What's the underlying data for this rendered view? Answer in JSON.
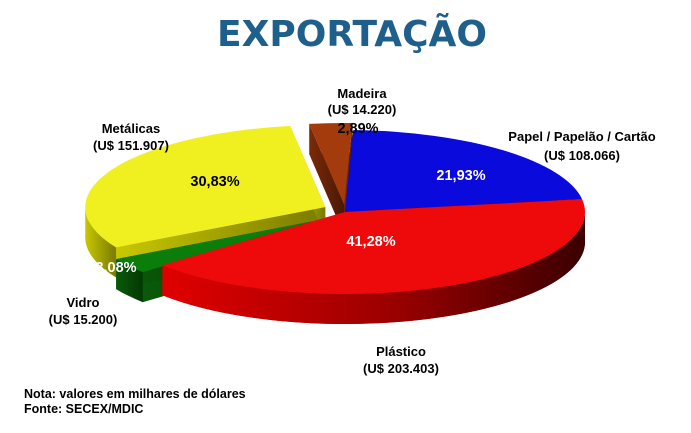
{
  "chart_data": {
    "type": "pie",
    "title": "EXPORTAÇÃO",
    "categories": [
      "Papel / Papelão / Cartão",
      "Plástico",
      "Vidro",
      "Metálicas",
      "Madeira"
    ],
    "values": [
      108066,
      203403,
      15200,
      151907,
      14220
    ],
    "value_labels": [
      "U$ 108.066",
      "U$ 203.403",
      "U$ 15.200",
      "U$ 151.907",
      "U$ 14.220"
    ],
    "percent_labels": [
      "21,93%",
      "41,28%",
      "3,08%",
      "30,83%",
      "2,89%"
    ],
    "colors": [
      "#0a0adc",
      "#ee0a0a",
      "#0a7d0a",
      "#f0f020",
      "#a33b0c"
    ],
    "title_color": "#1f5f8b",
    "style": "3d-exploded"
  },
  "footer": {
    "note": "Nota: valores em milhares de dólares",
    "source": "Fonte: SECEX/MDIC"
  }
}
